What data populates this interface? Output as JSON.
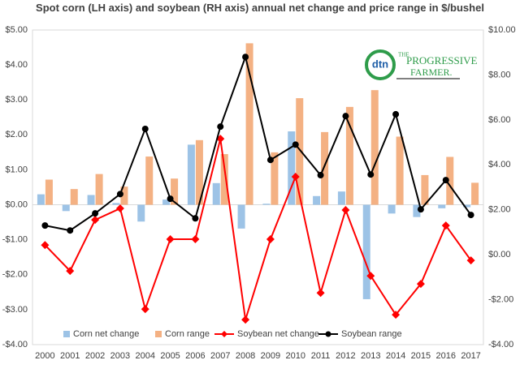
{
  "chart_data": {
    "type": "bar_line",
    "title": "Spot corn (LH axis) and soybean (RH axis) annual net change and price range in $/bushel",
    "categories": [
      "2000",
      "2001",
      "2002",
      "2003",
      "2004",
      "2005",
      "2006",
      "2007",
      "2008",
      "2009",
      "2010",
      "2011",
      "2012",
      "2013",
      "2014",
      "2015",
      "2016",
      "2017"
    ],
    "series": [
      {
        "name": "Corn net change",
        "type": "bar",
        "axis": "y",
        "color": "#9dc3e6",
        "values": [
          0.3,
          -0.18,
          0.28,
          0.05,
          -0.48,
          0.15,
          1.72,
          0.62,
          -0.68,
          0.03,
          2.1,
          0.25,
          0.38,
          -2.7,
          -0.25,
          -0.35,
          -0.1,
          -0.07
        ]
      },
      {
        "name": "Corn range",
        "type": "bar",
        "axis": "y",
        "color": "#f4b183",
        "values": [
          0.72,
          0.45,
          0.88,
          0.52,
          1.38,
          0.75,
          1.85,
          1.45,
          4.62,
          1.5,
          3.05,
          2.08,
          2.8,
          3.28,
          1.95,
          0.85,
          1.37,
          0.63
        ]
      },
      {
        "name": "Soybean net change",
        "type": "line",
        "axis": "y2",
        "color": "#ff0000",
        "marker": "diamond",
        "values": [
          0.43,
          -0.72,
          1.55,
          2.06,
          -2.42,
          0.69,
          0.69,
          5.16,
          -2.89,
          0.69,
          3.47,
          -1.7,
          1.99,
          -0.94,
          -2.67,
          -1.3,
          1.3,
          -0.25
        ]
      },
      {
        "name": "Soybean range",
        "type": "line",
        "axis": "y2",
        "color": "#000000",
        "marker": "circle",
        "values": [
          1.3,
          1.08,
          1.84,
          2.7,
          5.6,
          2.49,
          1.62,
          5.7,
          8.8,
          4.22,
          4.9,
          3.54,
          6.17,
          3.57,
          6.25,
          2.02,
          3.32,
          1.77
        ]
      }
    ],
    "ylim": [
      -4,
      5
    ],
    "yticks": [
      {
        "value": -4,
        "label": "-$4.00"
      },
      {
        "value": -3,
        "label": "-$3.00"
      },
      {
        "value": -2,
        "label": "-$2.00"
      },
      {
        "value": -1,
        "label": "-$1.00"
      },
      {
        "value": 0,
        "label": "$0.00"
      },
      {
        "value": 1,
        "label": "$1.00"
      },
      {
        "value": 2,
        "label": "$2.00"
      },
      {
        "value": 3,
        "label": "$3.00"
      },
      {
        "value": 4,
        "label": "$4.00"
      },
      {
        "value": 5,
        "label": "$5.00"
      }
    ],
    "y2lim": [
      -4,
      10
    ],
    "y2ticks": [
      {
        "value": -4,
        "label": "-$4.00"
      },
      {
        "value": -2,
        "label": "-$2.00"
      },
      {
        "value": 0,
        "label": "$0.00"
      },
      {
        "value": 2,
        "label": "$2.00"
      },
      {
        "value": 4,
        "label": "$4.00"
      },
      {
        "value": 6,
        "label": "$6.00"
      },
      {
        "value": 8,
        "label": "$8.00"
      },
      {
        "value": 10,
        "label": "$10.00"
      }
    ],
    "grid": false,
    "legend": "bottom"
  },
  "logo": {
    "mark": "dtn",
    "line1": "THE",
    "line2": "PROGRESSIVE",
    "line3": "FARMER."
  }
}
